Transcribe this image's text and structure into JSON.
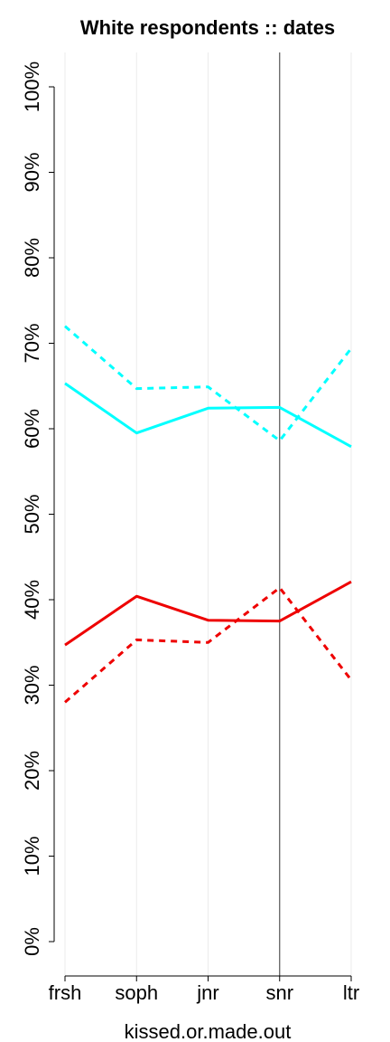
{
  "chart_data": {
    "type": "line",
    "title": "White respondents :: dates",
    "xlabel": "kissed.or.made.out",
    "ylabel": "",
    "categories": [
      "frsh",
      "soph",
      "jnr",
      "snr",
      "ltr"
    ],
    "ylim": [
      0,
      100
    ],
    "y_ticks": [
      0,
      10,
      20,
      30,
      40,
      50,
      60,
      70,
      80,
      90,
      100
    ],
    "y_tick_labels": [
      "0%",
      "10%",
      "20%",
      "30%",
      "40%",
      "50%",
      "60%",
      "70%",
      "80%",
      "90%",
      "100%"
    ],
    "grid": "vertical",
    "highlight_category": "snr",
    "series": [
      {
        "color": "#00ffff",
        "style": "solid",
        "values": [
          65.3,
          59.5,
          62.4,
          62.5,
          57.9
        ]
      },
      {
        "color": "#00ffff",
        "style": "dashed",
        "values": [
          72.0,
          64.7,
          64.9,
          58.6,
          69.4
        ]
      },
      {
        "color": "#ee0000",
        "style": "solid",
        "values": [
          34.7,
          40.4,
          37.6,
          37.5,
          42.1
        ]
      },
      {
        "color": "#ee0000",
        "style": "dashed",
        "values": [
          28.0,
          35.3,
          35.0,
          41.4,
          30.6
        ]
      }
    ]
  }
}
